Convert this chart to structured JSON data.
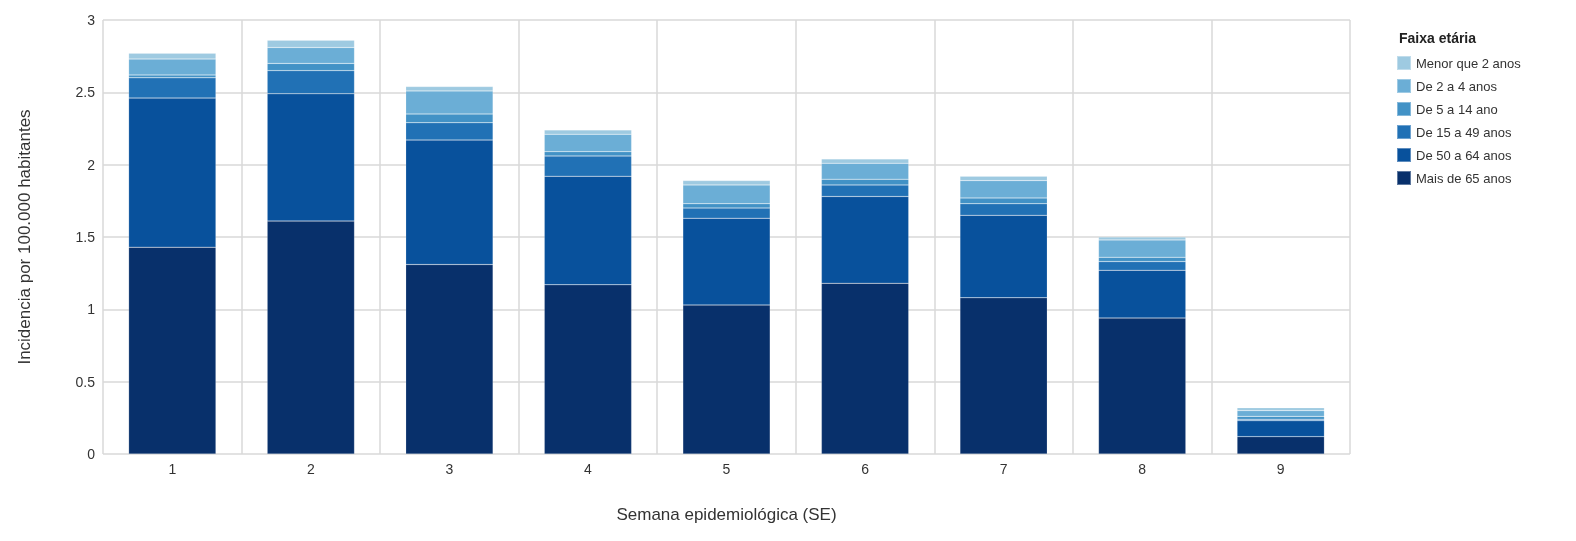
{
  "chart_data": {
    "type": "bar",
    "stacked": true,
    "xlabel": "Semana epidemiológica (SE)",
    "ylabel": "Incidencia por 100.000 habitantes",
    "legend_title": "Faixa etária",
    "legend": "right",
    "grid": true,
    "categories": [
      "1",
      "2",
      "3",
      "4",
      "5",
      "6",
      "7",
      "8",
      "9"
    ],
    "ylim": [
      0,
      3
    ],
    "yticks": [
      0,
      0.5,
      1,
      1.5,
      2,
      2.5,
      3
    ],
    "series": [
      {
        "name": "Mais de 65 anos",
        "color": "#08306b",
        "values": [
          1.43,
          1.61,
          1.31,
          1.17,
          1.03,
          1.18,
          1.08,
          0.94,
          0.12
        ]
      },
      {
        "name": "De 50 a 64 anos",
        "color": "#08519c",
        "values": [
          1.03,
          0.88,
          0.86,
          0.75,
          0.6,
          0.6,
          0.57,
          0.33,
          0.11
        ]
      },
      {
        "name": "De 15 a 49 anos",
        "color": "#2171b5",
        "values": [
          0.14,
          0.16,
          0.12,
          0.14,
          0.07,
          0.08,
          0.08,
          0.06,
          0.01
        ]
      },
      {
        "name": "De 5 a 14 ano",
        "color": "#4292c6",
        "values": [
          0.02,
          0.05,
          0.06,
          0.03,
          0.03,
          0.04,
          0.04,
          0.03,
          0.02
        ]
      },
      {
        "name": "De 2 a 4 anos",
        "color": "#6baed6",
        "values": [
          0.11,
          0.11,
          0.16,
          0.12,
          0.13,
          0.11,
          0.12,
          0.12,
          0.04
        ]
      },
      {
        "name": "Menor que 2 anos",
        "color": "#9ecae1",
        "values": [
          0.04,
          0.05,
          0.03,
          0.03,
          0.03,
          0.03,
          0.03,
          0.02,
          0.02
        ]
      }
    ]
  }
}
